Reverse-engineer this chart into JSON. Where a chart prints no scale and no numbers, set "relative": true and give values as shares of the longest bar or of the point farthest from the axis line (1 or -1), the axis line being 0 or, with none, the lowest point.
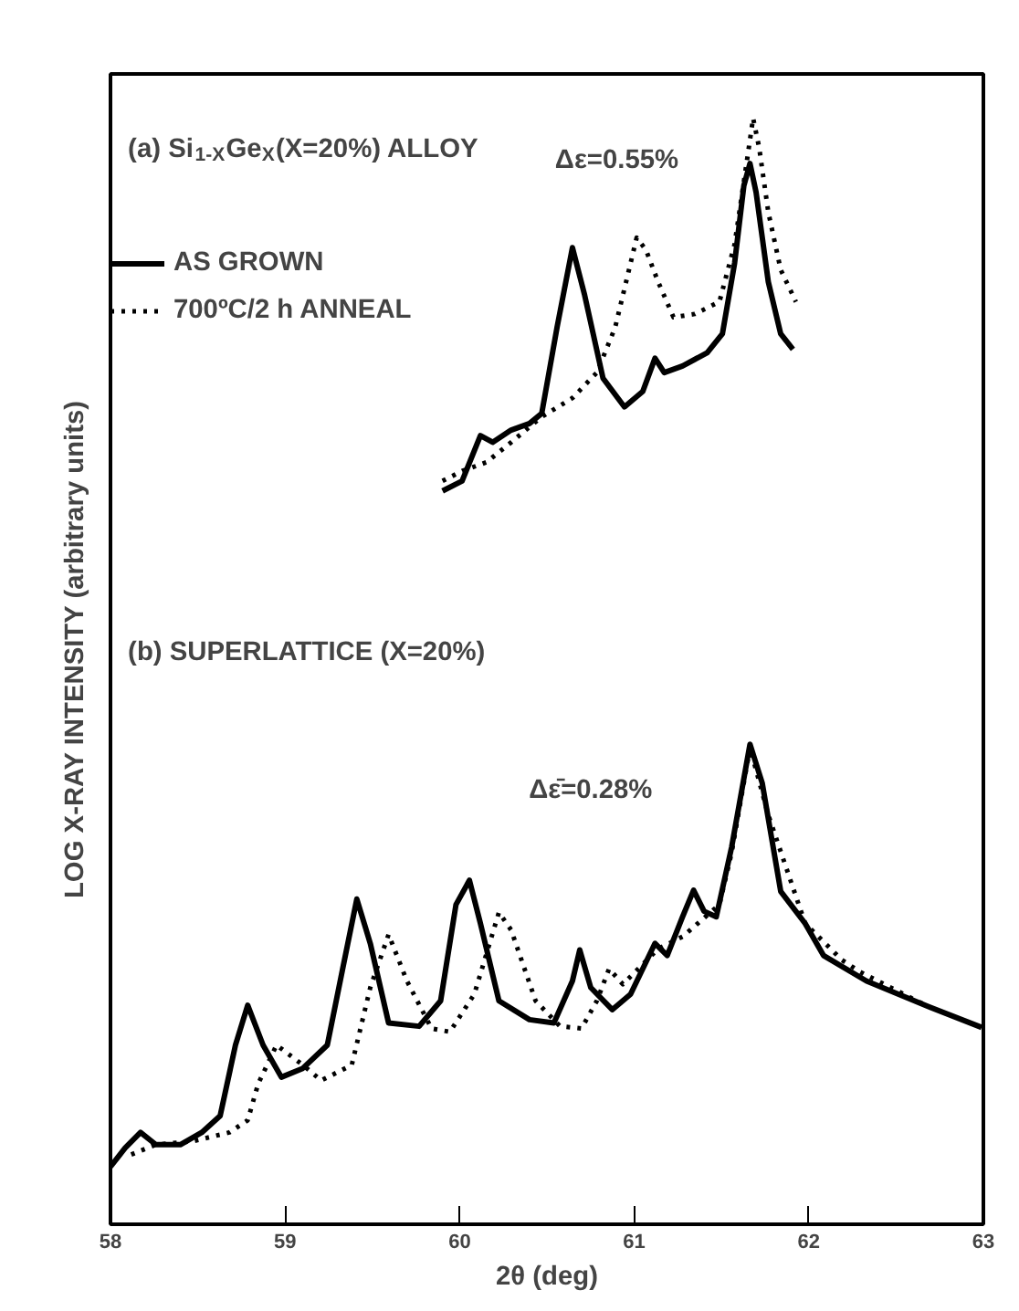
{
  "chart_data": {
    "type": "line",
    "relative": true,
    "xlabel": "2θ (deg)",
    "ylabel": "LOG X-RAY INTENSITY (arbitrary units)",
    "xlim": [
      58,
      63
    ],
    "xticks": [
      58,
      59,
      60,
      61,
      62,
      63
    ],
    "grid": false,
    "legend": "top left",
    "annotations": [
      "(a) Si$_{1-X}$Ge$_{X}$(X=20%) ALLOY",
      "(b) SUPERLATTICE (X=20%)",
      "Δε=0.55%",
      "Δε̄=0.28%"
    ],
    "series": [
      {
        "name": "AS GROWN",
        "color": "#000000",
        "line_style": "solid",
        "x": [
          59.902,
          60.014,
          60.119,
          60.189,
          60.295,
          60.4,
          60.47,
          60.558,
          60.646,
          60.716,
          60.821,
          60.944,
          61.049,
          61.119,
          61.172,
          61.277,
          61.418,
          61.505,
          61.575,
          61.628,
          61.663,
          61.698,
          61.768,
          61.839,
          61.909
        ],
        "values": [
          0.663,
          0.672,
          0.713,
          0.707,
          0.718,
          0.724,
          0.733,
          0.811,
          0.883,
          0.84,
          0.765,
          0.739,
          0.753,
          0.783,
          0.77,
          0.776,
          0.788,
          0.805,
          0.869,
          0.939,
          0.959,
          0.933,
          0.852,
          0.805,
          0.791
        ]
      },
      {
        "name": "700ºC/2 h ANNEAL",
        "color": "#000000",
        "line_style": "dotted",
        "x": [
          59.902,
          60.014,
          60.154,
          60.295,
          60.47,
          60.646,
          60.786,
          60.891,
          60.961,
          61.014,
          61.067,
          61.137,
          61.225,
          61.347,
          61.488,
          61.575,
          61.646,
          61.681,
          61.716,
          61.768,
          61.839,
          61.926
        ],
        "values": [
          0.672,
          0.681,
          0.689,
          0.707,
          0.73,
          0.747,
          0.77,
          0.811,
          0.857,
          0.892,
          0.881,
          0.852,
          0.82,
          0.823,
          0.834,
          0.886,
          0.962,
          1.0,
          0.973,
          0.915,
          0.863,
          0.834
        ]
      },
      {
        "color": "#000000",
        "line_style": "solid",
        "x": [
          58.0,
          58.084,
          58.172,
          58.26,
          58.4,
          58.523,
          58.628,
          58.716,
          58.786,
          58.874,
          58.979,
          59.102,
          59.242,
          59.33,
          59.411,
          59.488,
          59.593,
          59.768,
          59.891,
          59.979,
          60.056,
          60.119,
          60.225,
          60.4,
          60.54,
          60.646,
          60.688,
          60.751,
          60.874,
          60.979,
          61.119,
          61.189,
          61.277,
          61.34,
          61.4,
          61.47,
          61.558,
          61.663,
          61.733,
          61.839,
          61.979,
          62.084,
          62.33,
          62.681,
          62.99
        ],
        "values": [
          0.052,
          0.069,
          0.083,
          0.072,
          0.072,
          0.083,
          0.098,
          0.162,
          0.198,
          0.162,
          0.133,
          0.141,
          0.162,
          0.231,
          0.294,
          0.254,
          0.182,
          0.179,
          0.202,
          0.289,
          0.311,
          0.272,
          0.202,
          0.185,
          0.182,
          0.22,
          0.248,
          0.214,
          0.194,
          0.208,
          0.254,
          0.243,
          0.278,
          0.302,
          0.283,
          0.278,
          0.341,
          0.434,
          0.399,
          0.301,
          0.272,
          0.243,
          0.22,
          0.197,
          0.178
        ]
      },
      {
        "color": "#000000",
        "line_style": "dotted",
        "x": [
          58.119,
          58.26,
          58.47,
          58.681,
          58.786,
          58.846,
          58.951,
          59.102,
          59.207,
          59.382,
          59.488,
          59.593,
          59.698,
          59.839,
          59.944,
          60.084,
          60.225,
          60.295,
          60.435,
          60.575,
          60.698,
          60.786,
          60.856,
          60.935,
          61.137,
          61.277,
          61.488,
          61.558,
          61.663,
          61.768,
          61.979,
          62.189,
          62.295,
          62.681
        ],
        "values": [
          0.063,
          0.072,
          0.075,
          0.083,
          0.094,
          0.127,
          0.162,
          0.144,
          0.13,
          0.144,
          0.214,
          0.262,
          0.22,
          0.177,
          0.174,
          0.208,
          0.282,
          0.266,
          0.202,
          0.179,
          0.177,
          0.202,
          0.231,
          0.217,
          0.249,
          0.26,
          0.289,
          0.336,
          0.431,
          0.37,
          0.272,
          0.239,
          0.228,
          0.197
        ]
      }
    ]
  }
}
